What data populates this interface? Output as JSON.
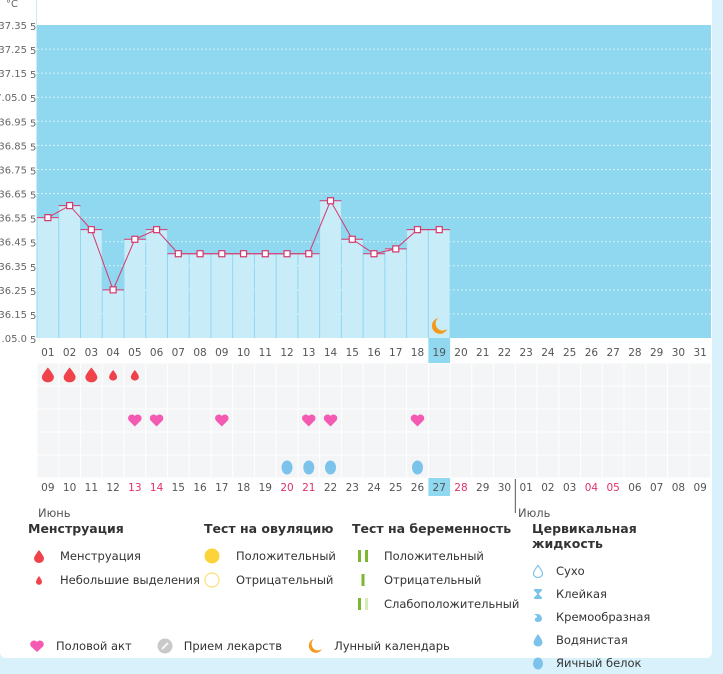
{
  "chart_data": {
    "type": "bar",
    "yunit": "°C",
    "ylim": [
      36.05,
      37.35
    ],
    "yticks": [
      "37.35",
      "37.25",
      "37.15",
      "7.05.0",
      "36.95",
      "36.85",
      "36.75",
      "36.65",
      "36.55",
      "36.45",
      "36.35",
      "36.25",
      "36.15",
      ".05.0"
    ],
    "ytick_suffix": "5",
    "top_days": [
      "01",
      "02",
      "03",
      "04",
      "05",
      "06",
      "07",
      "08",
      "09",
      "10",
      "11",
      "12",
      "13",
      "14",
      "15",
      "16",
      "17",
      "18",
      "19",
      "20",
      "21",
      "22",
      "23",
      "24",
      "25",
      "26",
      "27",
      "28",
      "29",
      "30",
      "31"
    ],
    "temperature": [
      36.55,
      36.6,
      36.5,
      36.25,
      36.46,
      36.5,
      36.4,
      36.4,
      36.4,
      36.4,
      36.4,
      36.4,
      36.4,
      36.62,
      36.46,
      36.4,
      36.42,
      36.5,
      36.5
    ],
    "current_day": "19",
    "moon_day": "19",
    "bottom_days": [
      "09",
      "10",
      "11",
      "12",
      "13",
      "14",
      "15",
      "16",
      "17",
      "18",
      "19",
      "20",
      "21",
      "22",
      "23",
      "24",
      "25",
      "26",
      "27",
      "28",
      "29",
      "30",
      "01",
      "02",
      "03",
      "04",
      "05",
      "06",
      "07",
      "08",
      "09"
    ],
    "bottom_red_days_index": [
      4,
      5,
      11,
      12,
      19,
      25,
      26
    ],
    "bottom_current_index": 18,
    "month_split_index": 22,
    "months": [
      "Июнь",
      "Июль"
    ],
    "menstruation": [
      "large",
      "large",
      "large",
      "small",
      "small"
    ],
    "sex_days_index": [
      4,
      5,
      8,
      12,
      13,
      17
    ],
    "egg_white_days_index": [
      11,
      12,
      13,
      17
    ],
    "colors": {
      "plot_bg": "#8fd8f0",
      "bar": "#c8ecf8",
      "line": "#d6386e",
      "menstruation": "#f0424a",
      "heart": "#f55ab2",
      "egg": "#7cc3ec",
      "moon": "#f39a1e"
    }
  },
  "legend": {
    "menstruation": {
      "title": "Менструация",
      "items": [
        "Менструация",
        "Небольшие выделения"
      ]
    },
    "ovulation": {
      "title": "Тест на овуляцию",
      "items": [
        "Положительный",
        "Отрицательный"
      ]
    },
    "pregnancy": {
      "title": "Тест на беременность",
      "items": [
        "Положительный",
        "Отрицательный",
        "Слабоположительный"
      ]
    },
    "cervical": {
      "title": "Цервикальная жидкость",
      "items": [
        "Сухо",
        "Клейкая",
        "Кремообразная",
        "Водянистая",
        "Яичный белок"
      ]
    },
    "other": [
      "Половой акт",
      "Прием лекарств",
      "Лунный календарь"
    ]
  }
}
